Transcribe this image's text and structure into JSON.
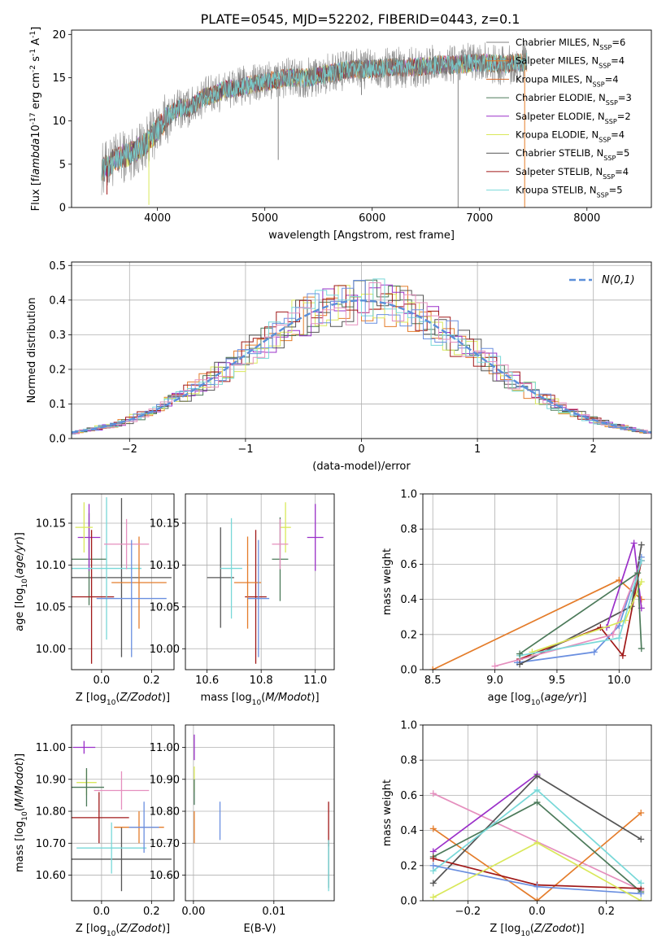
{
  "title": "PLATE=0545, MJD=52202, FIBERID=0443, z=0.1",
  "colors": [
    "#808080",
    "#e47c2a",
    "#d56a2c",
    "#4c7a5a",
    "#9b30c9",
    "#d9e85a",
    "#555555",
    "#a01818",
    "#78d8d8",
    "#6a8fe0",
    "#e58fbe"
  ],
  "chart_data": [
    {
      "id": "spectrum",
      "type": "line",
      "xlabel": "wavelength [Angstrom, rest frame]",
      "ylabel": "Flux [f$_\\lambda$10$^{-17}$ erg cm$^{-2}$ s$^{-1}$ A$^{-1}$]",
      "xlim": [
        3200,
        8600
      ],
      "ylim": [
        0,
        20.5
      ],
      "xticks": [
        4000,
        5000,
        6000,
        7000,
        8000
      ],
      "yticks": [
        0,
        5,
        10,
        15,
        20
      ],
      "legend_position": "upper right",
      "continuum": {
        "x": [
          3500,
          3600,
          3700,
          3800,
          3900,
          4000,
          4100,
          4200,
          4300,
          4400,
          4600,
          4800,
          5000,
          5200,
          5400,
          5600,
          5800,
          6000,
          6200,
          6400,
          6600,
          6800,
          7000,
          7200,
          7400
        ],
        "y": [
          4.5,
          5.5,
          6.0,
          6.5,
          7.5,
          9.0,
          10.5,
          11.5,
          11.5,
          12.5,
          13.5,
          14.0,
          14.5,
          15.0,
          15.0,
          15.5,
          16.0,
          16.0,
          16.2,
          16.2,
          16.5,
          16.5,
          16.8,
          16.5,
          16.8
        ]
      },
      "series": [
        {
          "name": "Chabrier MILES, N$_{SSP}$=6",
          "color": "#808080"
        },
        {
          "name": "Salpeter MILES, N$_{SSP}$=4",
          "color": "#e47c2a"
        },
        {
          "name": "Kroupa MILES, N$_{SSP}$=4",
          "color": "#d56a2c"
        },
        {
          "name": "Chabrier ELODIE, N$_{SSP}$=3",
          "color": "#4c7a5a"
        },
        {
          "name": "Salpeter ELODIE, N$_{SSP}$=2",
          "color": "#9b30c9"
        },
        {
          "name": "Kroupa ELODIE, N$_{SSP}$=4",
          "color": "#d9e85a"
        },
        {
          "name": "Chabrier STELIB, N$_{SSP}$=5",
          "color": "#555555"
        },
        {
          "name": "Salpeter STELIB, N$_{SSP}$=4",
          "color": "#a01818"
        },
        {
          "name": "Kroupa STELIB, N$_{SSP}$=5",
          "color": "#78d8d8"
        }
      ]
    },
    {
      "id": "residuals",
      "type": "histogram",
      "xlabel": "(data-model)/error",
      "ylabel": "Normed distribution",
      "xlim": [
        -2.5,
        2.5
      ],
      "ylim": [
        0,
        0.51
      ],
      "xticks": [
        -2,
        -1,
        0,
        1,
        2
      ],
      "yticks": [
        0.0,
        0.1,
        0.2,
        0.3,
        0.4,
        0.5
      ],
      "grid": true,
      "legend": "$\\mathcal{N}(0,1)$",
      "bin_width": 0.1,
      "reference_curve": "normal pdf, mean 0, sd 1"
    },
    {
      "id": "age_vs_Z",
      "type": "errorbar",
      "xlabel": "Z [log$_{10}$($Z/Z_\\odot$)]",
      "ylabel": "age  [log$_{10}$($age/yr$)]",
      "xlim": [
        -0.12,
        0.29
      ],
      "ylim": [
        9.975,
        10.185
      ],
      "xticks": [
        0.0,
        0.2
      ],
      "yticks": [
        10.0,
        10.05,
        10.1,
        10.15
      ],
      "grid": true,
      "points": [
        {
          "x": -0.05,
          "y": 10.107,
          "xerr": 0.07,
          "yerr": 0.055,
          "color": "#4c7a5a"
        },
        {
          "x": -0.05,
          "y": 10.133,
          "xerr": 0.045,
          "yerr": 0.04,
          "color": "#9b30c9"
        },
        {
          "x": -0.07,
          "y": 10.145,
          "xerr": 0.035,
          "yerr": 0.03,
          "color": "#d9e85a"
        },
        {
          "x": 0.08,
          "y": 10.085,
          "xerr": 0.2,
          "yerr": 0.095,
          "color": "#555555"
        },
        {
          "x": -0.04,
          "y": 10.062,
          "xerr": 0.09,
          "yerr": 0.08,
          "color": "#a01818"
        },
        {
          "x": 0.02,
          "y": 10.096,
          "xerr": 0.14,
          "yerr": 0.085,
          "color": "#78d8d8"
        },
        {
          "x": 0.15,
          "y": 10.079,
          "xerr": 0.11,
          "yerr": 0.055,
          "color": "#e47c2a"
        },
        {
          "x": 0.1,
          "y": 10.125,
          "xerr": 0.09,
          "yerr": 0.03,
          "color": "#e58fbe"
        },
        {
          "x": 0.12,
          "y": 10.06,
          "xerr": 0.14,
          "yerr": 0.07,
          "color": "#6a8fe0"
        }
      ]
    },
    {
      "id": "age_vs_mass",
      "type": "errorbar",
      "xlabel": "mass [log$_{10}$($M/M_\\odot$)]",
      "ylabel": "",
      "xlim": [
        10.52,
        11.07
      ],
      "ylim": [
        9.975,
        10.185
      ],
      "xticks": [
        10.6,
        10.8,
        11.0
      ],
      "yticks": [
        10.0,
        10.05,
        10.1,
        10.15
      ],
      "grid": true,
      "points": [
        {
          "x": 10.87,
          "y": 10.107,
          "xerr": 0.03,
          "yerr": 0.05,
          "color": "#4c7a5a"
        },
        {
          "x": 11.0,
          "y": 10.133,
          "xerr": 0.03,
          "yerr": 0.04,
          "color": "#9b30c9"
        },
        {
          "x": 10.89,
          "y": 10.145,
          "xerr": 0.02,
          "yerr": 0.03,
          "color": "#d9e85a"
        },
        {
          "x": 10.65,
          "y": 10.085,
          "xerr": 0.05,
          "yerr": 0.06,
          "color": "#555555"
        },
        {
          "x": 10.78,
          "y": 10.062,
          "xerr": 0.04,
          "yerr": 0.08,
          "color": "#a01818"
        },
        {
          "x": 10.69,
          "y": 10.096,
          "xerr": 0.04,
          "yerr": 0.06,
          "color": "#78d8d8"
        },
        {
          "x": 10.75,
          "y": 10.079,
          "xerr": 0.05,
          "yerr": 0.055,
          "color": "#e47c2a"
        },
        {
          "x": 10.87,
          "y": 10.125,
          "xerr": 0.03,
          "yerr": 0.03,
          "color": "#e58fbe"
        },
        {
          "x": 10.79,
          "y": 10.06,
          "xerr": 0.04,
          "yerr": 0.07,
          "color": "#6a8fe0"
        }
      ]
    },
    {
      "id": "weight_vs_age",
      "type": "line",
      "xlabel": "age  [log$_{10}$($age/yr$)]",
      "ylabel": "mass weight",
      "xlim": [
        8.42,
        10.26
      ],
      "ylim": [
        0,
        1.0
      ],
      "xticks": [
        8.5,
        9.0,
        9.5,
        10.0
      ],
      "yticks": [
        0.0,
        0.2,
        0.4,
        0.6,
        0.8,
        1.0
      ],
      "grid": true,
      "series": [
        {
          "color": "#e47c2a",
          "x": [
            8.5,
            10.0,
            10.18
          ],
          "y": [
            0.0,
            0.51,
            0.4
          ]
        },
        {
          "color": "#a01818",
          "x": [
            9.2,
            9.85,
            10.03,
            10.18
          ],
          "y": [
            0.06,
            0.24,
            0.08,
            0.62
          ]
        },
        {
          "color": "#6a8fe0",
          "x": [
            9.18,
            9.8,
            10.0,
            10.18
          ],
          "y": [
            0.04,
            0.1,
            0.25,
            0.64
          ]
        },
        {
          "color": "#555555",
          "x": [
            9.2,
            10.1,
            10.18
          ],
          "y": [
            0.03,
            0.36,
            0.71
          ]
        },
        {
          "color": "#9b30c9",
          "x": [
            9.9,
            10.12,
            10.18
          ],
          "y": [
            0.24,
            0.72,
            0.35
          ]
        },
        {
          "color": "#e58fbe",
          "x": [
            9.0,
            9.95,
            10.18
          ],
          "y": [
            0.02,
            0.2,
            0.62
          ]
        },
        {
          "color": "#d9e85a",
          "x": [
            9.3,
            10.05,
            10.18
          ],
          "y": [
            0.1,
            0.28,
            0.5
          ]
        },
        {
          "color": "#78d8d8",
          "x": [
            9.2,
            10.0,
            10.18
          ],
          "y": [
            0.08,
            0.18,
            0.62
          ]
        },
        {
          "color": "#4c7a5a",
          "x": [
            9.2,
            10.15,
            10.18
          ],
          "y": [
            0.09,
            0.55,
            0.12
          ]
        }
      ]
    },
    {
      "id": "mass_vs_Z",
      "type": "errorbar",
      "xlabel": "Z [log$_{10}$($Z/Z_\\odot$)]",
      "ylabel": "mass [log$_{10}$($M/M_\\odot$)]",
      "xlim": [
        -0.12,
        0.29
      ],
      "ylim": [
        10.52,
        11.07
      ],
      "xticks": [
        0.0,
        0.2
      ],
      "yticks": [
        10.6,
        10.7,
        10.8,
        10.9,
        11.0
      ],
      "grid": true,
      "points": [
        {
          "x": -0.07,
          "y": 11.0,
          "xerr": 0.045,
          "yerr": 0.02,
          "color": "#9b30c9"
        },
        {
          "x": -0.06,
          "y": 10.89,
          "xerr": 0.04,
          "yerr": 0.04,
          "color": "#d9e85a"
        },
        {
          "x": -0.06,
          "y": 10.875,
          "xerr": 0.07,
          "yerr": 0.06,
          "color": "#4c7a5a"
        },
        {
          "x": 0.08,
          "y": 10.865,
          "xerr": 0.11,
          "yerr": 0.06,
          "color": "#e58fbe"
        },
        {
          "x": 0.08,
          "y": 10.65,
          "xerr": 0.2,
          "yerr": 0.1,
          "color": "#555555"
        },
        {
          "x": -0.01,
          "y": 10.78,
          "xerr": 0.12,
          "yerr": 0.08,
          "color": "#a01818"
        },
        {
          "x": 0.04,
          "y": 10.685,
          "xerr": 0.14,
          "yerr": 0.08,
          "color": "#78d8d8"
        },
        {
          "x": 0.15,
          "y": 10.75,
          "xerr": 0.1,
          "yerr": 0.05,
          "color": "#e47c2a"
        },
        {
          "x": 0.17,
          "y": 10.75,
          "xerr": 0.06,
          "yerr": 0.08,
          "color": "#6a8fe0"
        }
      ]
    },
    {
      "id": "mass_vs_ebv",
      "type": "errorbar",
      "xlabel": "E(B-V)",
      "ylabel": "",
      "xlim": [
        -0.001,
        0.0175
      ],
      "ylim": [
        10.52,
        11.07
      ],
      "xticks": [
        0.0,
        0.01
      ],
      "yticks": [
        10.6,
        10.7,
        10.8,
        10.9,
        11.0
      ],
      "grid": true,
      "points": [
        {
          "x": 0.0001,
          "y": 11.0,
          "xerr": 0,
          "yerr": 0.04,
          "color": "#9b30c9"
        },
        {
          "x": 0.0001,
          "y": 10.9,
          "xerr": 0,
          "yerr": 0.04,
          "color": "#d9e85a"
        },
        {
          "x": 0.0001,
          "y": 10.86,
          "xerr": 0,
          "yerr": 0.04,
          "color": "#4c7a5a"
        },
        {
          "x": 0.0001,
          "y": 10.75,
          "xerr": 0,
          "yerr": 0.05,
          "color": "#e47c2a"
        },
        {
          "x": 0.0033,
          "y": 10.77,
          "xerr": 0,
          "yerr": 0.06,
          "color": "#6a8fe0"
        },
        {
          "x": 0.0168,
          "y": 10.76,
          "xerr": 0,
          "yerr": 0.07,
          "color": "#a01818"
        },
        {
          "x": 0.0168,
          "y": 10.63,
          "xerr": 0,
          "yerr": 0.07,
          "color": "#555555"
        },
        {
          "x": 0.0168,
          "y": 10.63,
          "xerr": 0,
          "yerr": 0.08,
          "color": "#78d8d8"
        }
      ]
    },
    {
      "id": "weight_vs_Z",
      "type": "line",
      "xlabel": "Z [log$_{10}$($Z/Z_\\odot$)]",
      "ylabel": "mass weight",
      "xlim": [
        -0.33,
        0.33
      ],
      "ylim": [
        0,
        1.0
      ],
      "xticks": [
        -0.2,
        0.0,
        0.2
      ],
      "yticks": [
        0.0,
        0.2,
        0.4,
        0.6,
        0.8,
        1.0
      ],
      "grid": true,
      "series": [
        {
          "color": "#e58fbe",
          "x": [
            -0.3,
            0.3
          ],
          "y": [
            0.61,
            0.06
          ]
        },
        {
          "color": "#e47c2a",
          "x": [
            -0.3,
            0.0,
            0.3
          ],
          "y": [
            0.41,
            0.0,
            0.5
          ]
        },
        {
          "color": "#9b30c9",
          "x": [
            -0.3,
            0.0
          ],
          "y": [
            0.28,
            0.72
          ]
        },
        {
          "color": "#555555",
          "x": [
            -0.3,
            0.0,
            0.3
          ],
          "y": [
            0.1,
            0.71,
            0.35
          ]
        },
        {
          "color": "#4c7a5a",
          "x": [
            -0.3,
            0.0,
            0.3
          ],
          "y": [
            0.25,
            0.56,
            0.05
          ]
        },
        {
          "color": "#a01818",
          "x": [
            -0.3,
            0.0,
            0.3
          ],
          "y": [
            0.24,
            0.09,
            0.07
          ]
        },
        {
          "color": "#78d8d8",
          "x": [
            -0.3,
            0.0,
            0.3
          ],
          "y": [
            0.17,
            0.63,
            0.1
          ]
        },
        {
          "color": "#6a8fe0",
          "x": [
            -0.3,
            0.0,
            0.3
          ],
          "y": [
            0.2,
            0.08,
            0.04
          ]
        },
        {
          "color": "#d9e85a",
          "x": [
            -0.3,
            0.0,
            0.3
          ],
          "y": [
            0.02,
            0.33,
            0.0
          ]
        }
      ]
    }
  ]
}
